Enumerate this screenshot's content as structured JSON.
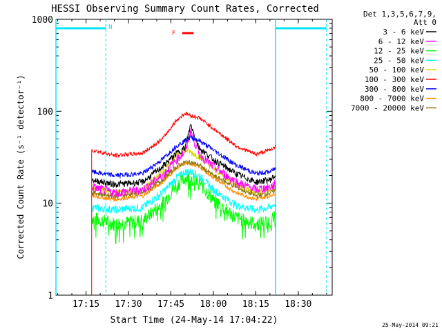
{
  "chart_data": {
    "type": "line",
    "title": "HESSI Observing Summary Count Rates, Corrected",
    "xlabel": "Start Time (24-May-14 17:04:22)",
    "ylabel": "Corrected Count Rate (s⁻¹ detector⁻¹)",
    "x_ticks": [
      "17:15",
      "17:30",
      "17:45",
      "18:00",
      "18:15",
      "18:30"
    ],
    "y_ticks": [
      "1",
      "10",
      "100",
      "1000"
    ],
    "y_scale": "log",
    "ylim": [
      1,
      1000
    ],
    "xlim": [
      "17:04",
      "18:42"
    ],
    "grid": false,
    "legend_header": [
      "Det 1,3,5,6,7,9,",
      "Att 0"
    ],
    "legend_position": "right",
    "timestamp": "25-May-2014 09:21",
    "flags": [
      {
        "label": "N",
        "color": "#00e5ff"
      },
      {
        "label": "F",
        "color": "#ff0000"
      }
    ],
    "series": [
      {
        "name": "3 - 6 keV",
        "color": "#000000"
      },
      {
        "name": "6 - 12 keV",
        "color": "#ff00ff"
      },
      {
        "name": "12 - 25 keV",
        "color": "#00ff00"
      },
      {
        "name": "25 - 50 keV",
        "color": "#00ffff"
      },
      {
        "name": "50 - 100 keV",
        "color": "#d6d600"
      },
      {
        "name": "100 - 300 keV",
        "color": "#ff0000"
      },
      {
        "name": "300 - 800 keV",
        "color": "#0000ff"
      },
      {
        "name": "800 - 7000 keV",
        "color": "#ff8c00"
      },
      {
        "name": "7000 - 20000 keV",
        "color": "#8b7500"
      }
    ],
    "time_points": [
      "17:17",
      "17:25",
      "17:35",
      "17:42",
      "17:47",
      "17:50",
      "17:52",
      "17:55",
      "18:00",
      "18:08",
      "18:15",
      "18:20",
      "18:22"
    ],
    "series_values": {
      "red": [
        38,
        33,
        35,
        50,
        80,
        95,
        90,
        85,
        65,
        42,
        34,
        38,
        42
      ],
      "blue": [
        22,
        20,
        21,
        30,
        42,
        48,
        52,
        48,
        38,
        26,
        21,
        22,
        24
      ],
      "black": [
        18,
        16,
        17,
        25,
        35,
        40,
        72,
        40,
        30,
        21,
        17,
        18,
        20
      ],
      "magenta": [
        15,
        13,
        14,
        20,
        30,
        36,
        62,
        34,
        25,
        17,
        14,
        15,
        16
      ],
      "yellow": [
        15,
        13,
        14,
        22,
        33,
        38,
        36,
        32,
        24,
        16,
        13,
        14,
        16
      ],
      "brown": [
        13,
        12,
        13,
        18,
        25,
        28,
        28,
        26,
        20,
        15,
        12,
        13,
        14
      ],
      "orange": [
        12,
        11,
        12,
        17,
        24,
        27,
        27,
        25,
        19,
        13,
        11,
        12,
        13
      ],
      "cyan": [
        9,
        8.5,
        9,
        13,
        19,
        22,
        22,
        20,
        14,
        9.5,
        8.5,
        9,
        10
      ],
      "green": [
        7,
        6,
        6.5,
        10,
        16,
        19,
        19,
        17,
        11,
        7,
        6,
        6.5,
        7
      ]
    }
  }
}
